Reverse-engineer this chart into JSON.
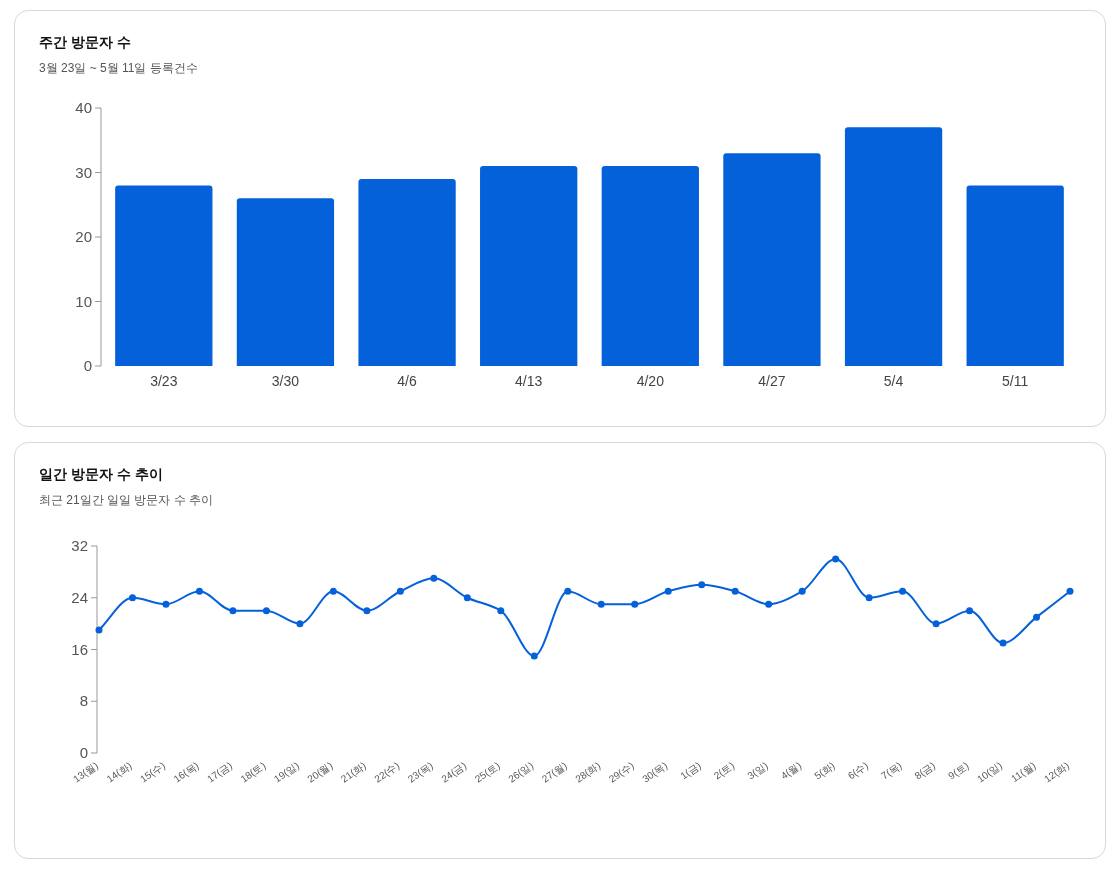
{
  "chart_data": [
    {
      "type": "bar",
      "title": "주간 방문자 수",
      "subtitle": "3월 23일 ~ 5월 11일 등록건수",
      "categories": [
        "3/23",
        "3/30",
        "4/6",
        "4/13",
        "4/20",
        "4/27",
        "5/4",
        "5/11"
      ],
      "values": [
        28,
        26,
        29,
        31,
        31,
        33,
        37,
        28
      ],
      "color": "#0461d9",
      "ylim": [
        0,
        40
      ],
      "yticks": [
        0,
        10,
        20,
        30,
        40
      ]
    },
    {
      "type": "line",
      "title": "일간 방문자 수 추이",
      "subtitle": "최근 21일간 일일 방문자 수 추이",
      "categories": [
        "13(월)",
        "14(화)",
        "15(수)",
        "16(목)",
        "17(금)",
        "18(토)",
        "19(일)",
        "20(월)",
        "21(화)",
        "22(수)",
        "23(목)",
        "24(금)",
        "25(토)",
        "26(일)",
        "27(월)",
        "28(화)",
        "29(수)",
        "30(목)",
        "1(금)",
        "2(토)",
        "3(일)",
        "4(월)",
        "5(화)",
        "6(수)",
        "7(목)",
        "8(금)",
        "9(토)",
        "10(일)",
        "11(월)",
        "12(화)"
      ],
      "values": [
        19,
        24,
        23,
        25,
        22,
        22,
        20,
        25,
        22,
        25,
        27,
        24,
        22,
        15,
        25,
        23,
        23,
        25,
        26,
        25,
        23,
        25,
        30,
        24,
        25,
        20,
        22,
        17,
        21,
        25
      ],
      "color": "#0461d9",
      "marker": "circle",
      "ylim": [
        0,
        32
      ],
      "yticks": [
        0,
        8,
        16,
        24,
        32
      ]
    }
  ]
}
